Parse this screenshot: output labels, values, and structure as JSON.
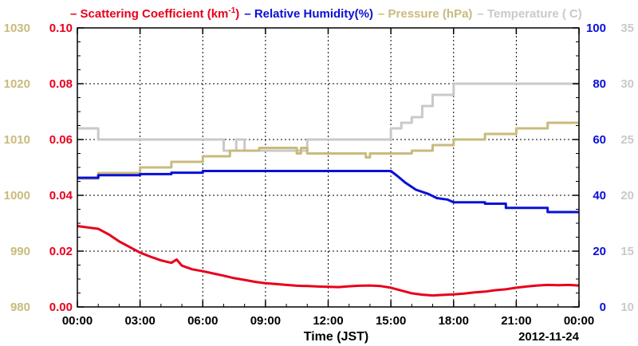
{
  "chart_data": {
    "type": "line",
    "xlabel": "Time (JST)",
    "date_label": "2012-11-24",
    "x_ticks": [
      "00:00",
      "03:00",
      "06:00",
      "09:00",
      "12:00",
      "15:00",
      "18:00",
      "21:00",
      "00:00"
    ],
    "xlim_hours": [
      0,
      24
    ],
    "grid": true,
    "legend_position": "top",
    "legend": [
      {
        "key": "scat",
        "text": "Scattering Coefficient (km",
        "sup": "-1",
        "tail": ")",
        "color": "#e8001c"
      },
      {
        "key": "rh",
        "text": "Relative Humidity(%)",
        "color": "#0a10d6"
      },
      {
        "key": "pres",
        "text": "Pressure (hPa)",
        "color": "#c8bb7c"
      },
      {
        "key": "temp",
        "text": "Temperature (",
        "tail": "C)",
        "color": "#c9c9c9"
      }
    ],
    "axes": {
      "scat": {
        "side": "left-inner",
        "ylim": [
          0,
          0.1
        ],
        "ticks": [
          "0.00",
          "0.02",
          "0.04",
          "0.06",
          "0.08",
          "0.10"
        ],
        "color": "#e8001c"
      },
      "pres": {
        "side": "left-outer",
        "ylim": [
          980,
          1030
        ],
        "ticks": [
          "980",
          "990",
          "1000",
          "1010",
          "1020",
          "1030"
        ],
        "color": "#c8bb7c"
      },
      "rh": {
        "side": "right-inner",
        "ylim": [
          0,
          100
        ],
        "ticks": [
          "0",
          "20",
          "40",
          "60",
          "80",
          "100"
        ],
        "color": "#0a10d6"
      },
      "temp": {
        "side": "right-outer",
        "ylim": [
          10,
          35
        ],
        "ticks": [
          "10",
          "15",
          "20",
          "25",
          "30",
          "35"
        ],
        "color": "#c9c9c9"
      }
    },
    "series": [
      {
        "name": "Scattering Coefficient (km-1)",
        "axis": "scat",
        "color": "#e8001c",
        "points": [
          [
            0,
            0.029
          ],
          [
            0.5,
            0.0285
          ],
          [
            1,
            0.028
          ],
          [
            1.5,
            0.026
          ],
          [
            2,
            0.0235
          ],
          [
            2.5,
            0.0215
          ],
          [
            3,
            0.0195
          ],
          [
            3.5,
            0.018
          ],
          [
            4,
            0.0167
          ],
          [
            4.5,
            0.0158
          ],
          [
            4.75,
            0.017
          ],
          [
            5,
            0.0148
          ],
          [
            5.5,
            0.0135
          ],
          [
            6,
            0.0128
          ],
          [
            6.5,
            0.012
          ],
          [
            7,
            0.0112
          ],
          [
            7.5,
            0.0103
          ],
          [
            8,
            0.0097
          ],
          [
            8.5,
            0.009
          ],
          [
            9,
            0.0085
          ],
          [
            9.5,
            0.0082
          ],
          [
            10,
            0.0079
          ],
          [
            10.5,
            0.0076
          ],
          [
            11,
            0.0075
          ],
          [
            11.5,
            0.0073
          ],
          [
            12,
            0.0072
          ],
          [
            12.5,
            0.0071
          ],
          [
            13,
            0.0074
          ],
          [
            13.5,
            0.0076
          ],
          [
            14,
            0.0077
          ],
          [
            14.5,
            0.0075
          ],
          [
            15,
            0.0069
          ],
          [
            15.5,
            0.0059
          ],
          [
            16,
            0.0049
          ],
          [
            16.5,
            0.0044
          ],
          [
            17,
            0.0041
          ],
          [
            17.5,
            0.0043
          ],
          [
            18,
            0.0045
          ],
          [
            18.5,
            0.0048
          ],
          [
            19,
            0.0052
          ],
          [
            19.5,
            0.0055
          ],
          [
            20,
            0.006
          ],
          [
            20.5,
            0.0063
          ],
          [
            21,
            0.0069
          ],
          [
            21.5,
            0.0073
          ],
          [
            22,
            0.0077
          ],
          [
            22.5,
            0.0079
          ],
          [
            23,
            0.0078
          ],
          [
            23.5,
            0.0079
          ],
          [
            24,
            0.0077
          ]
        ]
      },
      {
        "name": "Relative Humidity(%)",
        "axis": "rh",
        "color": "#0a10d6",
        "points": [
          [
            0,
            46.3
          ],
          [
            1,
            46.3
          ],
          [
            1,
            47.2
          ],
          [
            3,
            47.2
          ],
          [
            3,
            47.6
          ],
          [
            4.5,
            47.6
          ],
          [
            4.5,
            48.1
          ],
          [
            6,
            48.1
          ],
          [
            6,
            48.7
          ],
          [
            15,
            48.7
          ],
          [
            15.3,
            47
          ],
          [
            15.7,
            44.5
          ],
          [
            16.2,
            42
          ],
          [
            16.8,
            40.5
          ],
          [
            17.2,
            39
          ],
          [
            17.7,
            38.5
          ],
          [
            18,
            37.5
          ],
          [
            19.5,
            37.5
          ],
          [
            19.5,
            37
          ],
          [
            20.5,
            37
          ],
          [
            20.5,
            35.5
          ],
          [
            21,
            35.5
          ],
          [
            22.5,
            35.5
          ],
          [
            22.5,
            34
          ],
          [
            24,
            34
          ]
        ]
      },
      {
        "name": "Pressure (hPa)",
        "axis": "pres",
        "color": "#c8bb7c",
        "points": [
          [
            0,
            1003
          ],
          [
            1,
            1003
          ],
          [
            1,
            1004
          ],
          [
            3,
            1004
          ],
          [
            3,
            1005
          ],
          [
            4.5,
            1005
          ],
          [
            4.5,
            1006
          ],
          [
            6,
            1006
          ],
          [
            6,
            1007
          ],
          [
            7.3,
            1007
          ],
          [
            7.3,
            1008
          ],
          [
            8.7,
            1008
          ],
          [
            8.7,
            1008.5
          ],
          [
            10.5,
            1008.5
          ],
          [
            10.5,
            1007.5
          ],
          [
            10.7,
            1007.5
          ],
          [
            10.7,
            1008.5
          ],
          [
            11,
            1008.5
          ],
          [
            11,
            1007.5
          ],
          [
            13.8,
            1007.5
          ],
          [
            13.8,
            1006.8
          ],
          [
            14,
            1006.8
          ],
          [
            14,
            1007.5
          ],
          [
            16,
            1007.5
          ],
          [
            16,
            1008
          ],
          [
            17,
            1008
          ],
          [
            17,
            1009
          ],
          [
            18,
            1009
          ],
          [
            18,
            1010
          ],
          [
            19.5,
            1010
          ],
          [
            19.5,
            1011
          ],
          [
            21,
            1011
          ],
          [
            21,
            1012
          ],
          [
            22.5,
            1012
          ],
          [
            22.5,
            1013
          ],
          [
            24,
            1013
          ]
        ]
      },
      {
        "name": "Temperature (C)",
        "axis": "temp",
        "color": "#c9c9c9",
        "points": [
          [
            0,
            26
          ],
          [
            1,
            26
          ],
          [
            1,
            25
          ],
          [
            7,
            25
          ],
          [
            7,
            24
          ],
          [
            7.6,
            24
          ],
          [
            7.6,
            25
          ],
          [
            8,
            25
          ],
          [
            8,
            24
          ],
          [
            11,
            24
          ],
          [
            11,
            25
          ],
          [
            15,
            25
          ],
          [
            15,
            26
          ],
          [
            15.5,
            26
          ],
          [
            15.5,
            26.5
          ],
          [
            16,
            26.5
          ],
          [
            16,
            27
          ],
          [
            16.5,
            27
          ],
          [
            16.5,
            28
          ],
          [
            17,
            28
          ],
          [
            17,
            29
          ],
          [
            18,
            29
          ],
          [
            18,
            30
          ],
          [
            24,
            30
          ]
        ]
      }
    ]
  }
}
